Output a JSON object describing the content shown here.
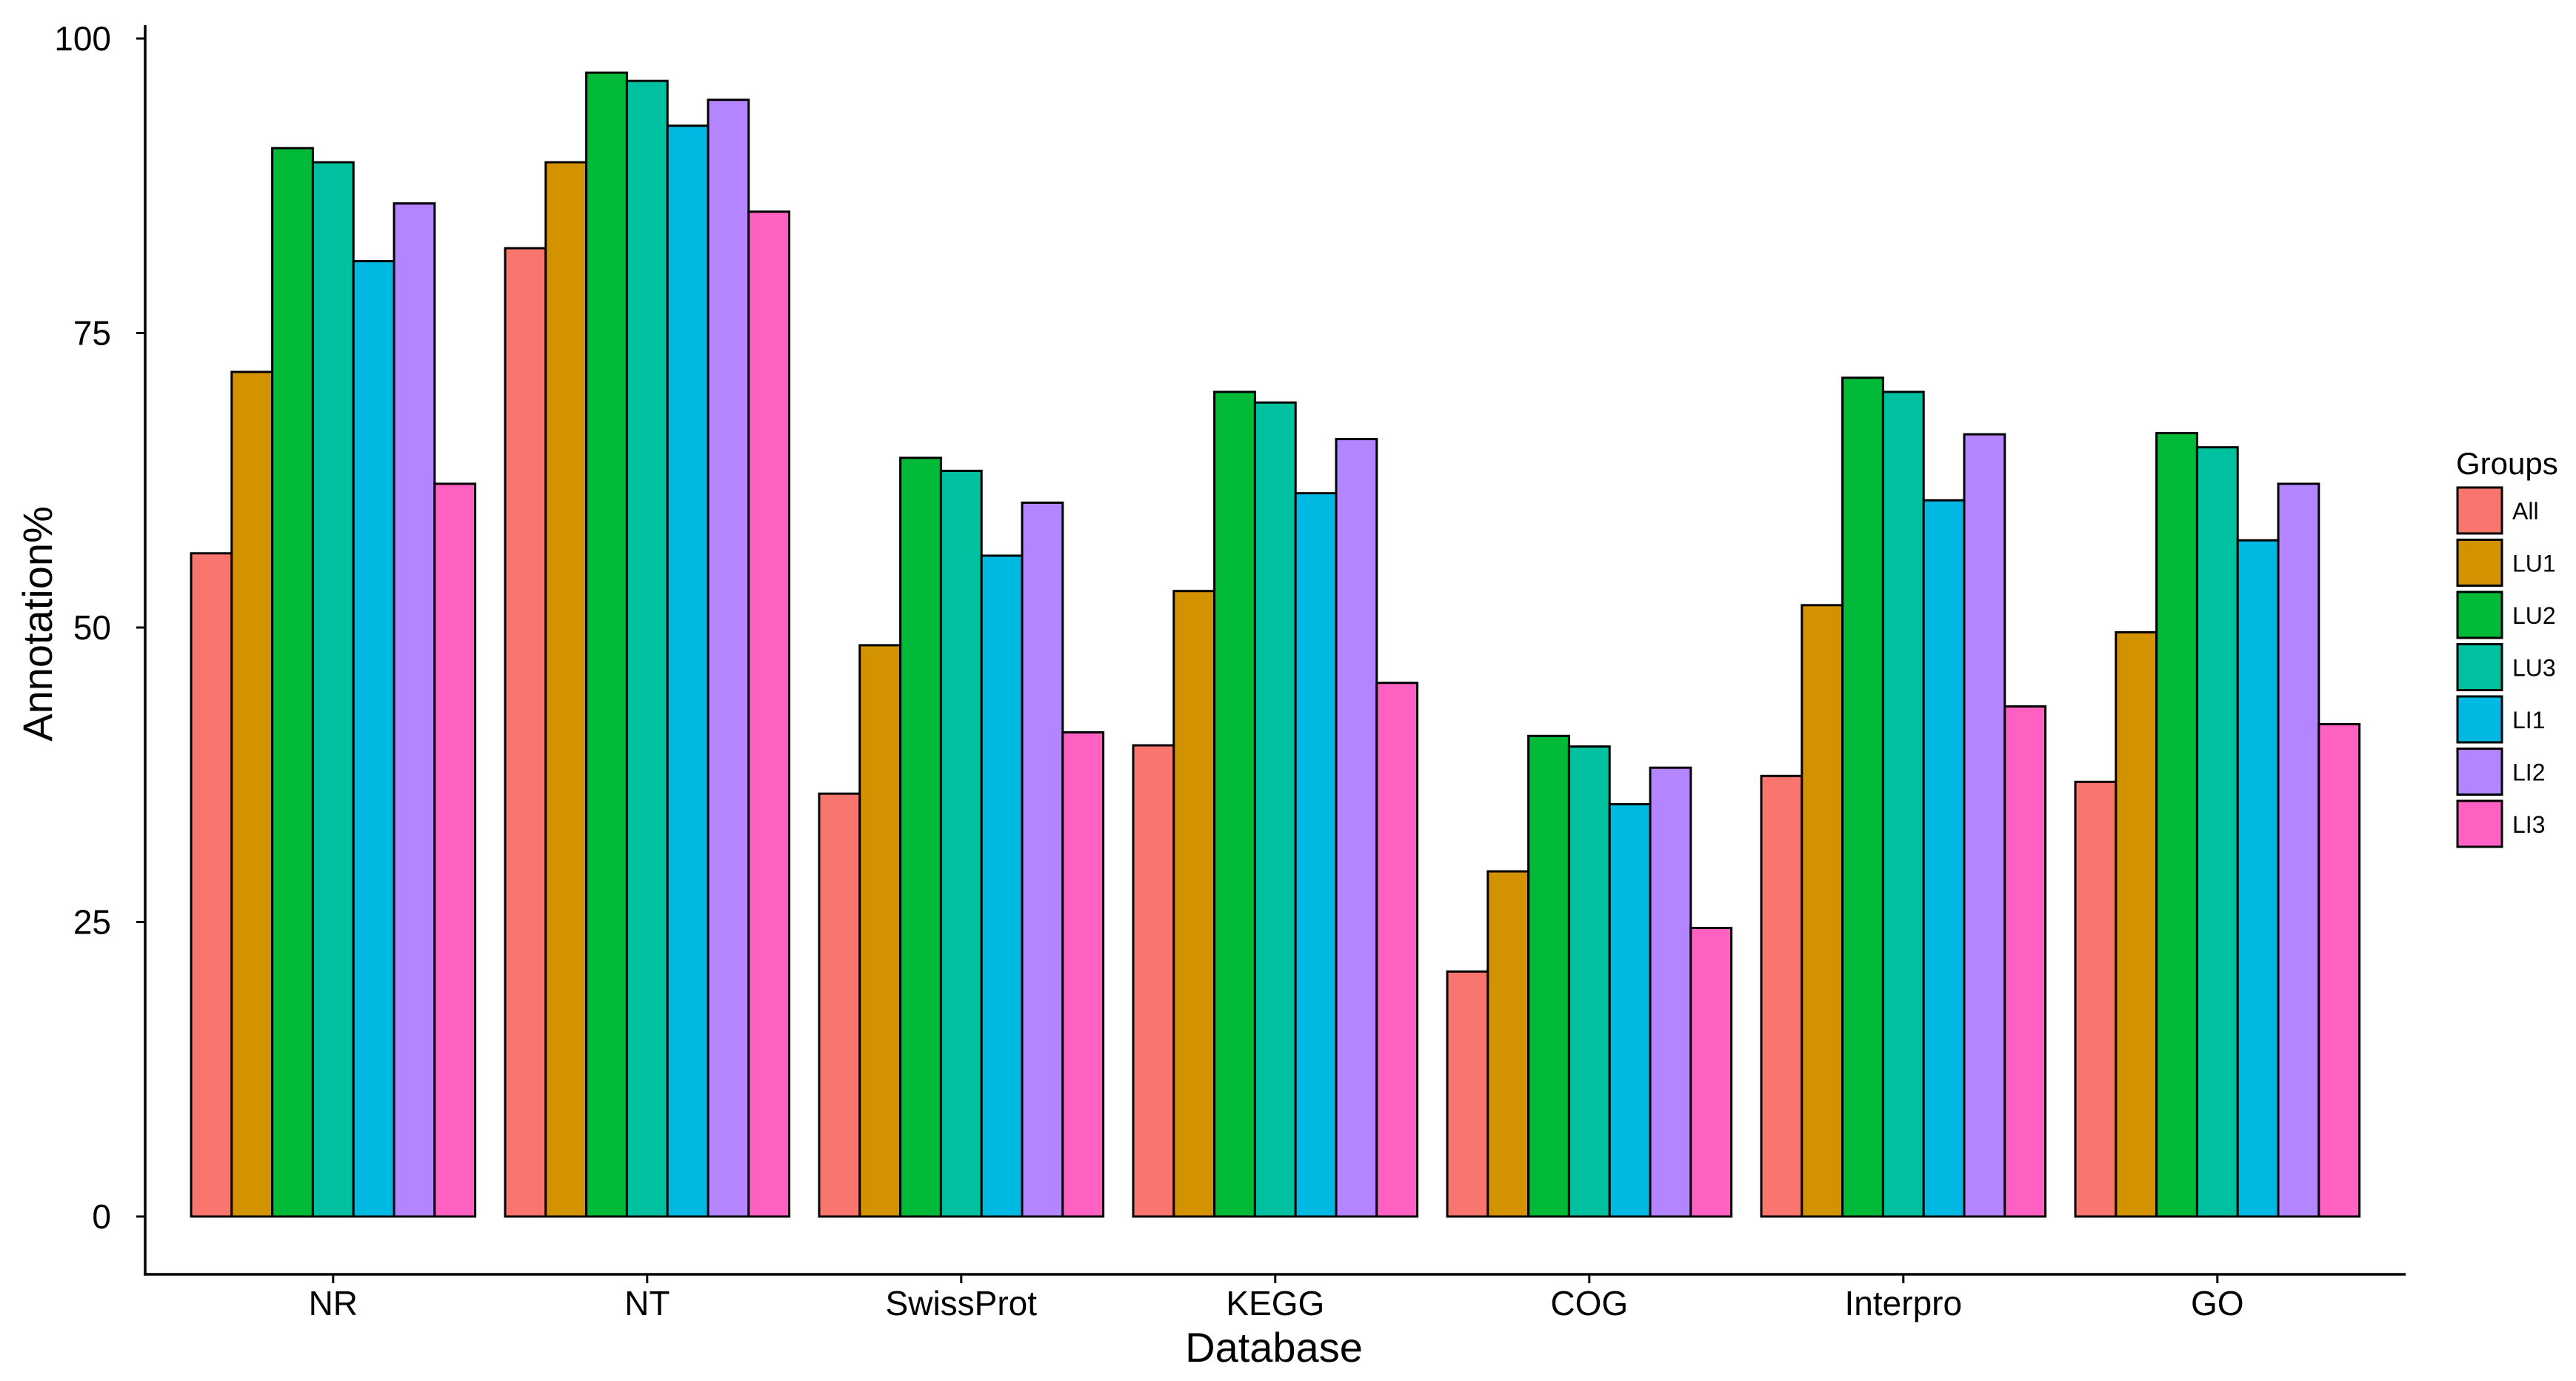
{
  "chart_data": {
    "type": "bar",
    "title": "",
    "xlabel": "Database",
    "ylabel": "Annotation%",
    "ylim": [
      0,
      100
    ],
    "yticks": [
      "0",
      "25",
      "50",
      "75",
      "100"
    ],
    "grid": false,
    "legend": {
      "title": "Groups",
      "position": "right"
    },
    "categories": [
      "NR",
      "NT",
      "SwissProt",
      "KEGG",
      "COG",
      "Interpro",
      "GO"
    ],
    "series": [
      {
        "name": "All",
        "color": "#F8766D",
        "values": [
          56.3,
          82.2,
          35.9,
          40.0,
          20.8,
          37.4,
          36.9
        ]
      },
      {
        "name": "LU1",
        "color": "#D39200",
        "values": [
          71.7,
          89.5,
          48.5,
          53.1,
          29.3,
          51.9,
          49.6
        ]
      },
      {
        "name": "LU2",
        "color": "#00BA38",
        "values": [
          90.7,
          97.1,
          64.4,
          70.0,
          40.8,
          71.2,
          66.5
        ]
      },
      {
        "name": "LU3",
        "color": "#00C19F",
        "values": [
          89.5,
          96.4,
          63.3,
          69.1,
          39.9,
          70.0,
          65.3
        ]
      },
      {
        "name": "LI1",
        "color": "#00B9E3",
        "values": [
          81.1,
          92.6,
          56.1,
          61.4,
          35.0,
          60.8,
          57.4
        ]
      },
      {
        "name": "LI2",
        "color": "#B385FF",
        "values": [
          86.0,
          94.8,
          60.6,
          66.0,
          38.1,
          66.4,
          62.2
        ]
      },
      {
        "name": "LI3",
        "color": "#FF61C3",
        "values": [
          62.2,
          85.3,
          41.1,
          45.3,
          24.5,
          43.3,
          41.8
        ]
      }
    ]
  }
}
